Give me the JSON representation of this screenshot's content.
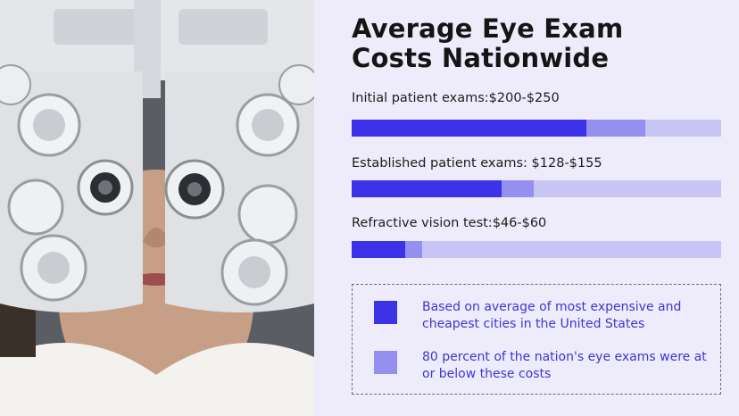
{
  "title_lines": [
    "Average Eye Exam",
    "Costs Nationwide"
  ],
  "colors": {
    "low": "#3c32e8",
    "high": "#958ff0",
    "track": "#c8c5f5",
    "background": "#eeecfb",
    "legend_text": "#3f35d6"
  },
  "chart_data": {
    "type": "bar",
    "orientation": "horizontal",
    "title": "Average Eye Exam Costs Nationwide",
    "xlim": [
      0,
      315
    ],
    "categories": [
      "Initial patient exams",
      "Established patient exams",
      "Refractive vision test"
    ],
    "labels": [
      "Initial patient exams:$200-$250",
      "Established patient exams: $128-$155",
      "Refractive vision test:$46-$60"
    ],
    "series": [
      {
        "values": [
          200,
          128,
          46
        ]
      },
      {
        "values": [
          250,
          155,
          60
        ]
      }
    ]
  },
  "legend": [
    {
      "text": "Based on average of most expensive and cheapest cities in the United States"
    },
    {
      "text": "80 percent of the nation's eye exams were at or below these costs"
    }
  ],
  "photo": {
    "description_icon": "phoropter-photo"
  }
}
